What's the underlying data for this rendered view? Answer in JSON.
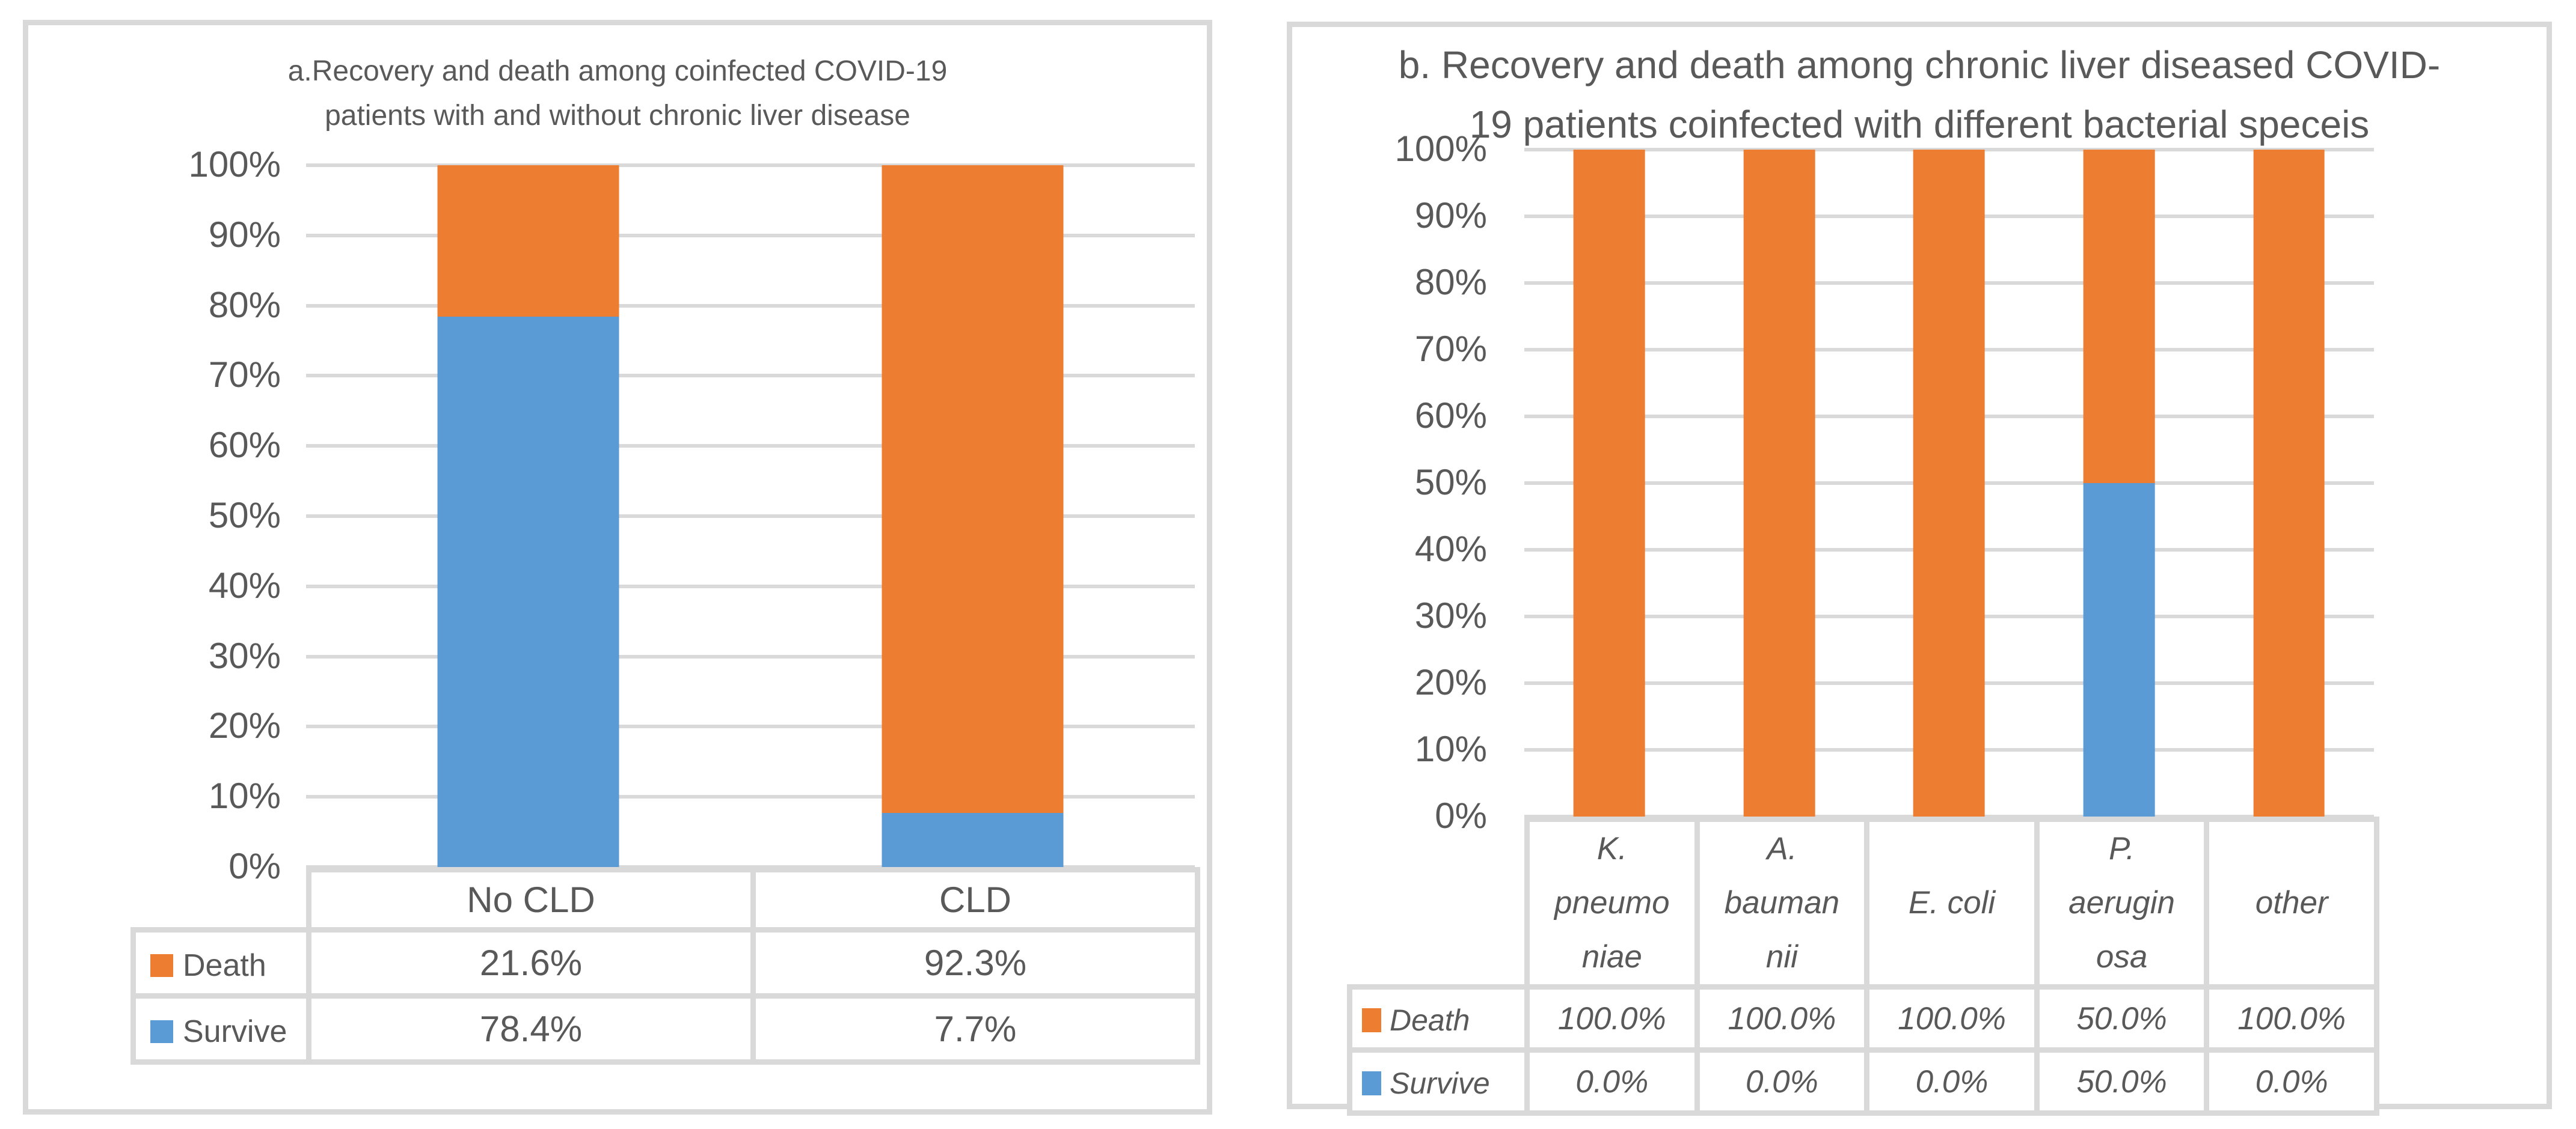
{
  "page": {
    "background": "#FFFFFF"
  },
  "styles": {
    "text_color": "#595959",
    "grid_color": "#D9D9D9",
    "panel_border_color": "#D9D9D9",
    "death_color": "#ED7D31",
    "survive_color": "#5B9BD5"
  },
  "chart_data": [
    {
      "type": "bar",
      "stacked": true,
      "title": "a.Recovery and death among coinfected COVID-19 patients with and without chronic liver disease",
      "title_lines": [
        "a.Recovery and death among coinfected COVID-19",
        "patients with and without chronic liver disease"
      ],
      "categories": [
        "No CLD",
        "CLD"
      ],
      "category_lines": [
        [
          "No CLD"
        ],
        [
          "CLD"
        ]
      ],
      "series": [
        {
          "name": "Death",
          "color": "#ED7D31",
          "values": [
            21.6,
            92.3
          ],
          "labels": [
            "21.6%",
            "92.3%"
          ]
        },
        {
          "name": "Survive",
          "color": "#5B9BD5",
          "values": [
            78.4,
            7.7
          ],
          "labels": [
            "78.4%",
            "7.7%"
          ]
        }
      ],
      "ylim": [
        0,
        100
      ],
      "ytick_step": 10,
      "ytick_labels": [
        "0%",
        "10%",
        "20%",
        "30%",
        "40%",
        "50%",
        "60%",
        "70%",
        "80%",
        "90%",
        "100%"
      ],
      "grid": true,
      "legend_position": "data-table-left",
      "value_style": "normal"
    },
    {
      "type": "bar",
      "stacked": true,
      "title": "b. Recovery and death among chronic liver diseased COVID-19 patients coinfected with different bacterial speceis",
      "title_lines": [
        "b. Recovery and death among chronic liver diseased COVID-",
        "19 patients coinfected with different bacterial speceis"
      ],
      "categories": [
        "K. pneumoniae",
        "A. baumannii",
        "E. coli",
        "P. aeruginosa",
        "other"
      ],
      "category_lines": [
        [
          "K.",
          "pneumo",
          "niae"
        ],
        [
          "A.",
          "bauman",
          "nii"
        ],
        [
          "E. coli"
        ],
        [
          "P.",
          "aerugin",
          "osa"
        ],
        [
          "other"
        ]
      ],
      "series": [
        {
          "name": "Death",
          "color": "#ED7D31",
          "values": [
            100.0,
            100.0,
            100.0,
            50.0,
            100.0
          ],
          "labels": [
            "100.0%",
            "100.0%",
            "100.0%",
            "50.0%",
            "100.0%"
          ]
        },
        {
          "name": "Survive",
          "color": "#5B9BD5",
          "values": [
            0.0,
            0.0,
            0.0,
            50.0,
            0.0
          ],
          "labels": [
            "0.0%",
            "0.0%",
            "0.0%",
            "50.0%",
            "0.0%"
          ]
        }
      ],
      "ylim": [
        0,
        100
      ],
      "ytick_step": 10,
      "ytick_labels": [
        "0%",
        "10%",
        "20%",
        "30%",
        "40%",
        "50%",
        "60%",
        "70%",
        "80%",
        "90%",
        "100%"
      ],
      "grid": true,
      "legend_position": "data-table-left",
      "value_style": "italic"
    }
  ]
}
